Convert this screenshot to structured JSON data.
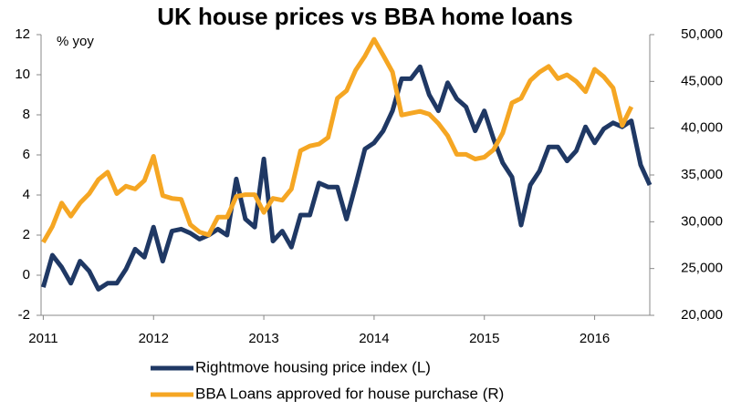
{
  "chart_data": {
    "type": "line",
    "title": "UK house prices vs BBA home loans",
    "y_label": "% yoy",
    "x": [
      2011,
      2011.083,
      2011.167,
      2011.25,
      2011.333,
      2011.417,
      2011.5,
      2011.583,
      2011.667,
      2011.75,
      2011.833,
      2011.917,
      2012,
      2012.083,
      2012.167,
      2012.25,
      2012.333,
      2012.417,
      2012.5,
      2012.583,
      2012.667,
      2012.75,
      2012.833,
      2012.917,
      2013,
      2013.083,
      2013.167,
      2013.25,
      2013.333,
      2013.417,
      2013.5,
      2013.583,
      2013.667,
      2013.75,
      2013.833,
      2013.917,
      2014,
      2014.083,
      2014.167,
      2014.25,
      2014.333,
      2014.417,
      2014.5,
      2014.583,
      2014.667,
      2014.75,
      2014.833,
      2014.917,
      2015,
      2015.083,
      2015.167,
      2015.25,
      2015.333,
      2015.417,
      2015.5,
      2015.583,
      2015.667,
      2015.75,
      2015.833,
      2015.917,
      2016,
      2016.083,
      2016.167,
      2016.25,
      2016.333,
      2016.417,
      2016.5
    ],
    "series": [
      {
        "name": "Rightmove housing price index (L)",
        "color": "#1f3864",
        "axis": "y",
        "values": [
          -0.6,
          1.0,
          0.4,
          -0.4,
          0.7,
          0.2,
          -0.7,
          -0.4,
          -0.4,
          0.3,
          1.3,
          0.9,
          2.4,
          0.7,
          2.2,
          2.3,
          2.1,
          1.8,
          2.0,
          2.3,
          2.0,
          4.8,
          2.8,
          2.4,
          5.8,
          1.7,
          2.2,
          1.4,
          3.0,
          3.0,
          4.6,
          4.4,
          4.4,
          2.8,
          4.5,
          6.3,
          6.6,
          7.2,
          8.2,
          9.8,
          9.8,
          10.4,
          9.0,
          8.2,
          9.6,
          8.8,
          8.4,
          7.2,
          8.2,
          6.8,
          5.6,
          4.9,
          2.5,
          4.5,
          5.2,
          6.4,
          6.4,
          5.7,
          6.2,
          7.4,
          6.6,
          7.3,
          7.6,
          7.4,
          7.7,
          5.5,
          4.5
        ]
      },
      {
        "name": "BBA Loans approved for house purchase (R)",
        "color": "#f5a623",
        "axis": "y2",
        "values": [
          27800,
          29500,
          32000,
          30600,
          32000,
          33000,
          34500,
          35300,
          33000,
          33800,
          33500,
          34400,
          37000,
          32800,
          32500,
          32400,
          29700,
          28900,
          28600,
          30500,
          30500,
          32700,
          32900,
          32900,
          31000,
          32500,
          32300,
          33500,
          37600,
          38100,
          38300,
          39000,
          43200,
          44000,
          46200,
          47700,
          49500,
          47800,
          46000,
          41400,
          41600,
          41800,
          41500,
          40500,
          39200,
          37200,
          37200,
          36700,
          36900,
          37700,
          39500,
          42700,
          43200,
          45100,
          46000,
          46600,
          45300,
          45700,
          45000,
          43900,
          46300,
          45500,
          44300,
          40300,
          42300,
          null,
          null
        ]
      }
    ],
    "xlim": [
      2010.98,
      2016.5
    ],
    "xticks": [
      2011,
      2012,
      2013,
      2014,
      2015,
      2016
    ],
    "ylim": [
      -2,
      12
    ],
    "yticks": [
      -2,
      0,
      2,
      4,
      6,
      8,
      10,
      12
    ],
    "y2lim": [
      20000,
      50000
    ],
    "y2ticks": [
      {
        "value": 20000,
        "label": "20,000"
      },
      {
        "value": 25000,
        "label": "25,000"
      },
      {
        "value": 30000,
        "label": "30,000"
      },
      {
        "value": 35000,
        "label": "35,000"
      },
      {
        "value": 40000,
        "label": "40,000"
      },
      {
        "value": 45000,
        "label": "45,000"
      },
      {
        "value": 50000,
        "label": "50,000"
      }
    ],
    "grid": false,
    "legend": "bottom"
  }
}
